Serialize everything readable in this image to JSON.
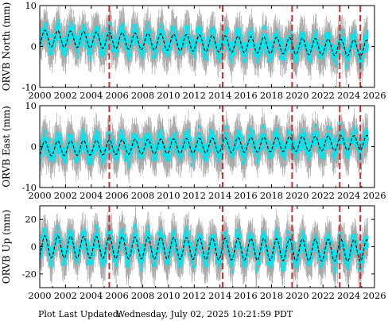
{
  "footer": {
    "label": "Plot Last Updated:",
    "timestamp": "Wednesday, July 02, 2025 10:21:59 PDT"
  },
  "colors": {
    "error_bars": "#a9a9a9",
    "data_points": "#00e5ee",
    "model_line": "#000000",
    "events": "#d42a2a"
  },
  "chart_data": [
    {
      "type": "scatter",
      "name": "north",
      "ylabel": "ORVB North (mm)",
      "xlim": [
        2000,
        2026
      ],
      "ylim": [
        -10,
        10
      ],
      "xticks": [
        "2000",
        "2002",
        "2004",
        "2006",
        "2008",
        "2010",
        "2012",
        "2014",
        "2016",
        "2018",
        "2020",
        "2022",
        "2024",
        "2026"
      ],
      "yticks": [
        "-10",
        "0",
        "10"
      ],
      "event_lines": [
        2005.4,
        2014.2,
        2019.6,
        2023.3,
        2024.9
      ],
      "model": {
        "amplitude": 2.0,
        "period_years": 1.0,
        "trend_start": 2.0,
        "trend_end": -0.5
      },
      "scatter_spread": 4.0
    },
    {
      "type": "scatter",
      "name": "east",
      "ylabel": "ORVB East (mm)",
      "xlim": [
        2000,
        2026
      ],
      "ylim": [
        -10,
        10
      ],
      "xticks": [
        "2000",
        "2002",
        "2004",
        "2006",
        "2008",
        "2010",
        "2012",
        "2014",
        "2016",
        "2018",
        "2020",
        "2022",
        "2024",
        "2026"
      ],
      "yticks": [
        "-10",
        "0",
        "10"
      ],
      "event_lines": [
        2005.4,
        2014.2,
        2019.6,
        2023.3,
        2024.9
      ],
      "model": {
        "amplitude": 1.8,
        "period_years": 1.0,
        "trend_start": -0.5,
        "trend_end": 1.0
      },
      "scatter_spread": 4.0
    },
    {
      "type": "scatter",
      "name": "up",
      "ylabel": "ORVB Up (mm)",
      "xlim": [
        2000,
        2026
      ],
      "ylim": [
        -30,
        30
      ],
      "xticks": [
        "2000",
        "2002",
        "2004",
        "2006",
        "2008",
        "2010",
        "2012",
        "2014",
        "2016",
        "2018",
        "2020",
        "2022",
        "2024",
        "2026"
      ],
      "yticks": [
        "-20",
        "0",
        "20"
      ],
      "event_lines": [
        2005.4,
        2014.2,
        2019.6,
        2023.3,
        2024.9
      ],
      "model": {
        "amplitude": 8.0,
        "period_years": 1.0,
        "trend_start": 0.0,
        "trend_end": -3.0
      },
      "scatter_spread": 12.0
    }
  ]
}
